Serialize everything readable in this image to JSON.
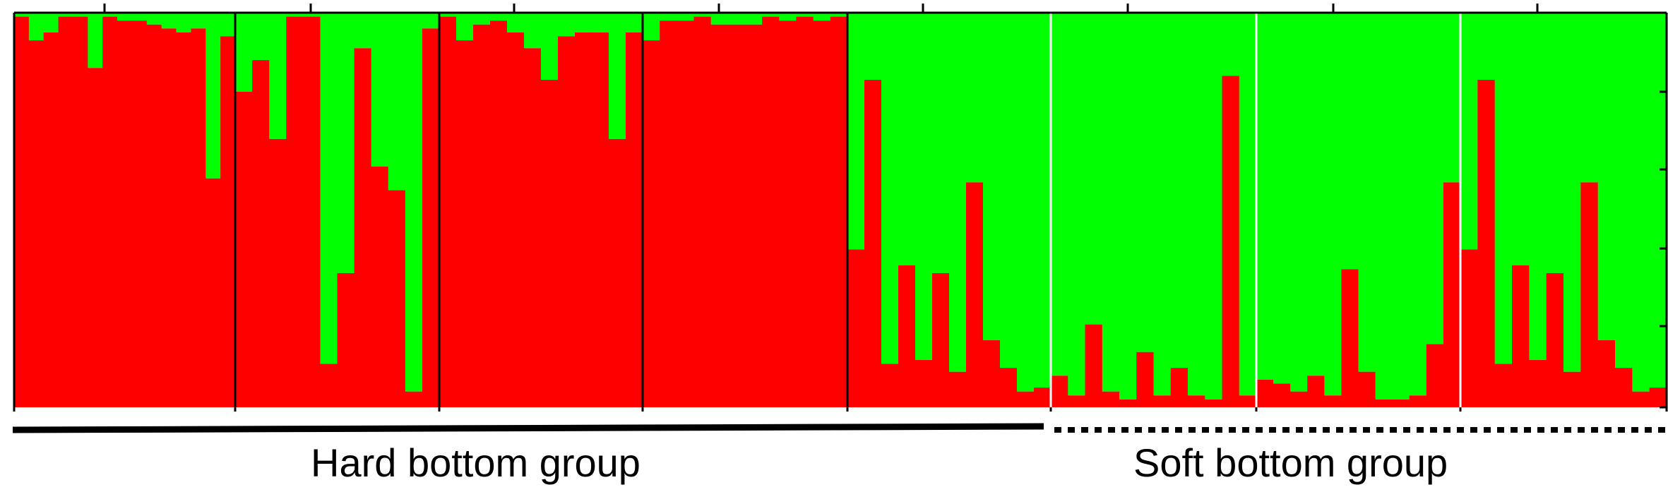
{
  "chart_data": {
    "type": "bar",
    "stacked": true,
    "ylim": [
      0,
      1
    ],
    "grid": false,
    "colors": {
      "cluster_1": "#ff0000",
      "cluster_2": "#00ff00",
      "divider": "#000000",
      "soft_divider": "#ffffff"
    },
    "series": [
      {
        "color": "#ff0000",
        "description": "cluster 1 membership (bottom)"
      },
      {
        "color": "#00ff00",
        "description": "cluster 2 membership (top)"
      }
    ],
    "populations": [
      {
        "cluster_1": [
          0.99,
          0.93,
          0.95,
          0.99,
          0.99,
          0.86,
          0.99,
          0.98,
          0.98,
          0.97,
          0.96,
          0.95,
          0.96,
          0.58,
          0.94
        ]
      },
      {
        "cluster_1": [
          0.8,
          0.88,
          0.68,
          0.99,
          0.99,
          0.11,
          0.34,
          0.91,
          0.61,
          0.55,
          0.04,
          0.96
        ]
      },
      {
        "cluster_1": [
          0.99,
          0.93,
          0.97,
          0.98,
          0.95,
          0.91,
          0.83,
          0.94,
          0.95,
          0.95,
          0.68,
          0.95
        ]
      },
      {
        "cluster_1": [
          0.93,
          0.98,
          0.98,
          0.99,
          0.97,
          0.97,
          0.97,
          0.99,
          0.98,
          0.99,
          0.98,
          0.99
        ]
      },
      {
        "cluster_1": [
          0.4,
          0.83,
          0.11,
          0.36,
          0.12,
          0.34,
          0.09,
          0.57,
          0.17,
          0.1,
          0.04,
          0.05
        ]
      },
      {
        "cluster_1": [
          0.08,
          0.03,
          0.21,
          0.04,
          0.02,
          0.14,
          0.03,
          0.1,
          0.03,
          0.02,
          0.84,
          0.03
        ]
      },
      {
        "cluster_1": [
          0.07,
          0.06,
          0.04,
          0.08,
          0.03,
          0.35,
          0.09,
          0.02,
          0.02,
          0.03,
          0.16,
          0.57
        ]
      },
      {
        "cluster_1": [
          0.4,
          0.83,
          0.11,
          0.36,
          0.12,
          0.34,
          0.09,
          0.57,
          0.17,
          0.1,
          0.04,
          0.05
        ]
      }
    ],
    "groups": [
      {
        "label": "Hard bottom group",
        "populations": [
          0,
          1,
          2,
          3,
          4
        ],
        "line_style": "solid"
      },
      {
        "label": "Soft bottom group",
        "populations": [
          5,
          6,
          7
        ],
        "line_style": "dotted"
      }
    ]
  }
}
